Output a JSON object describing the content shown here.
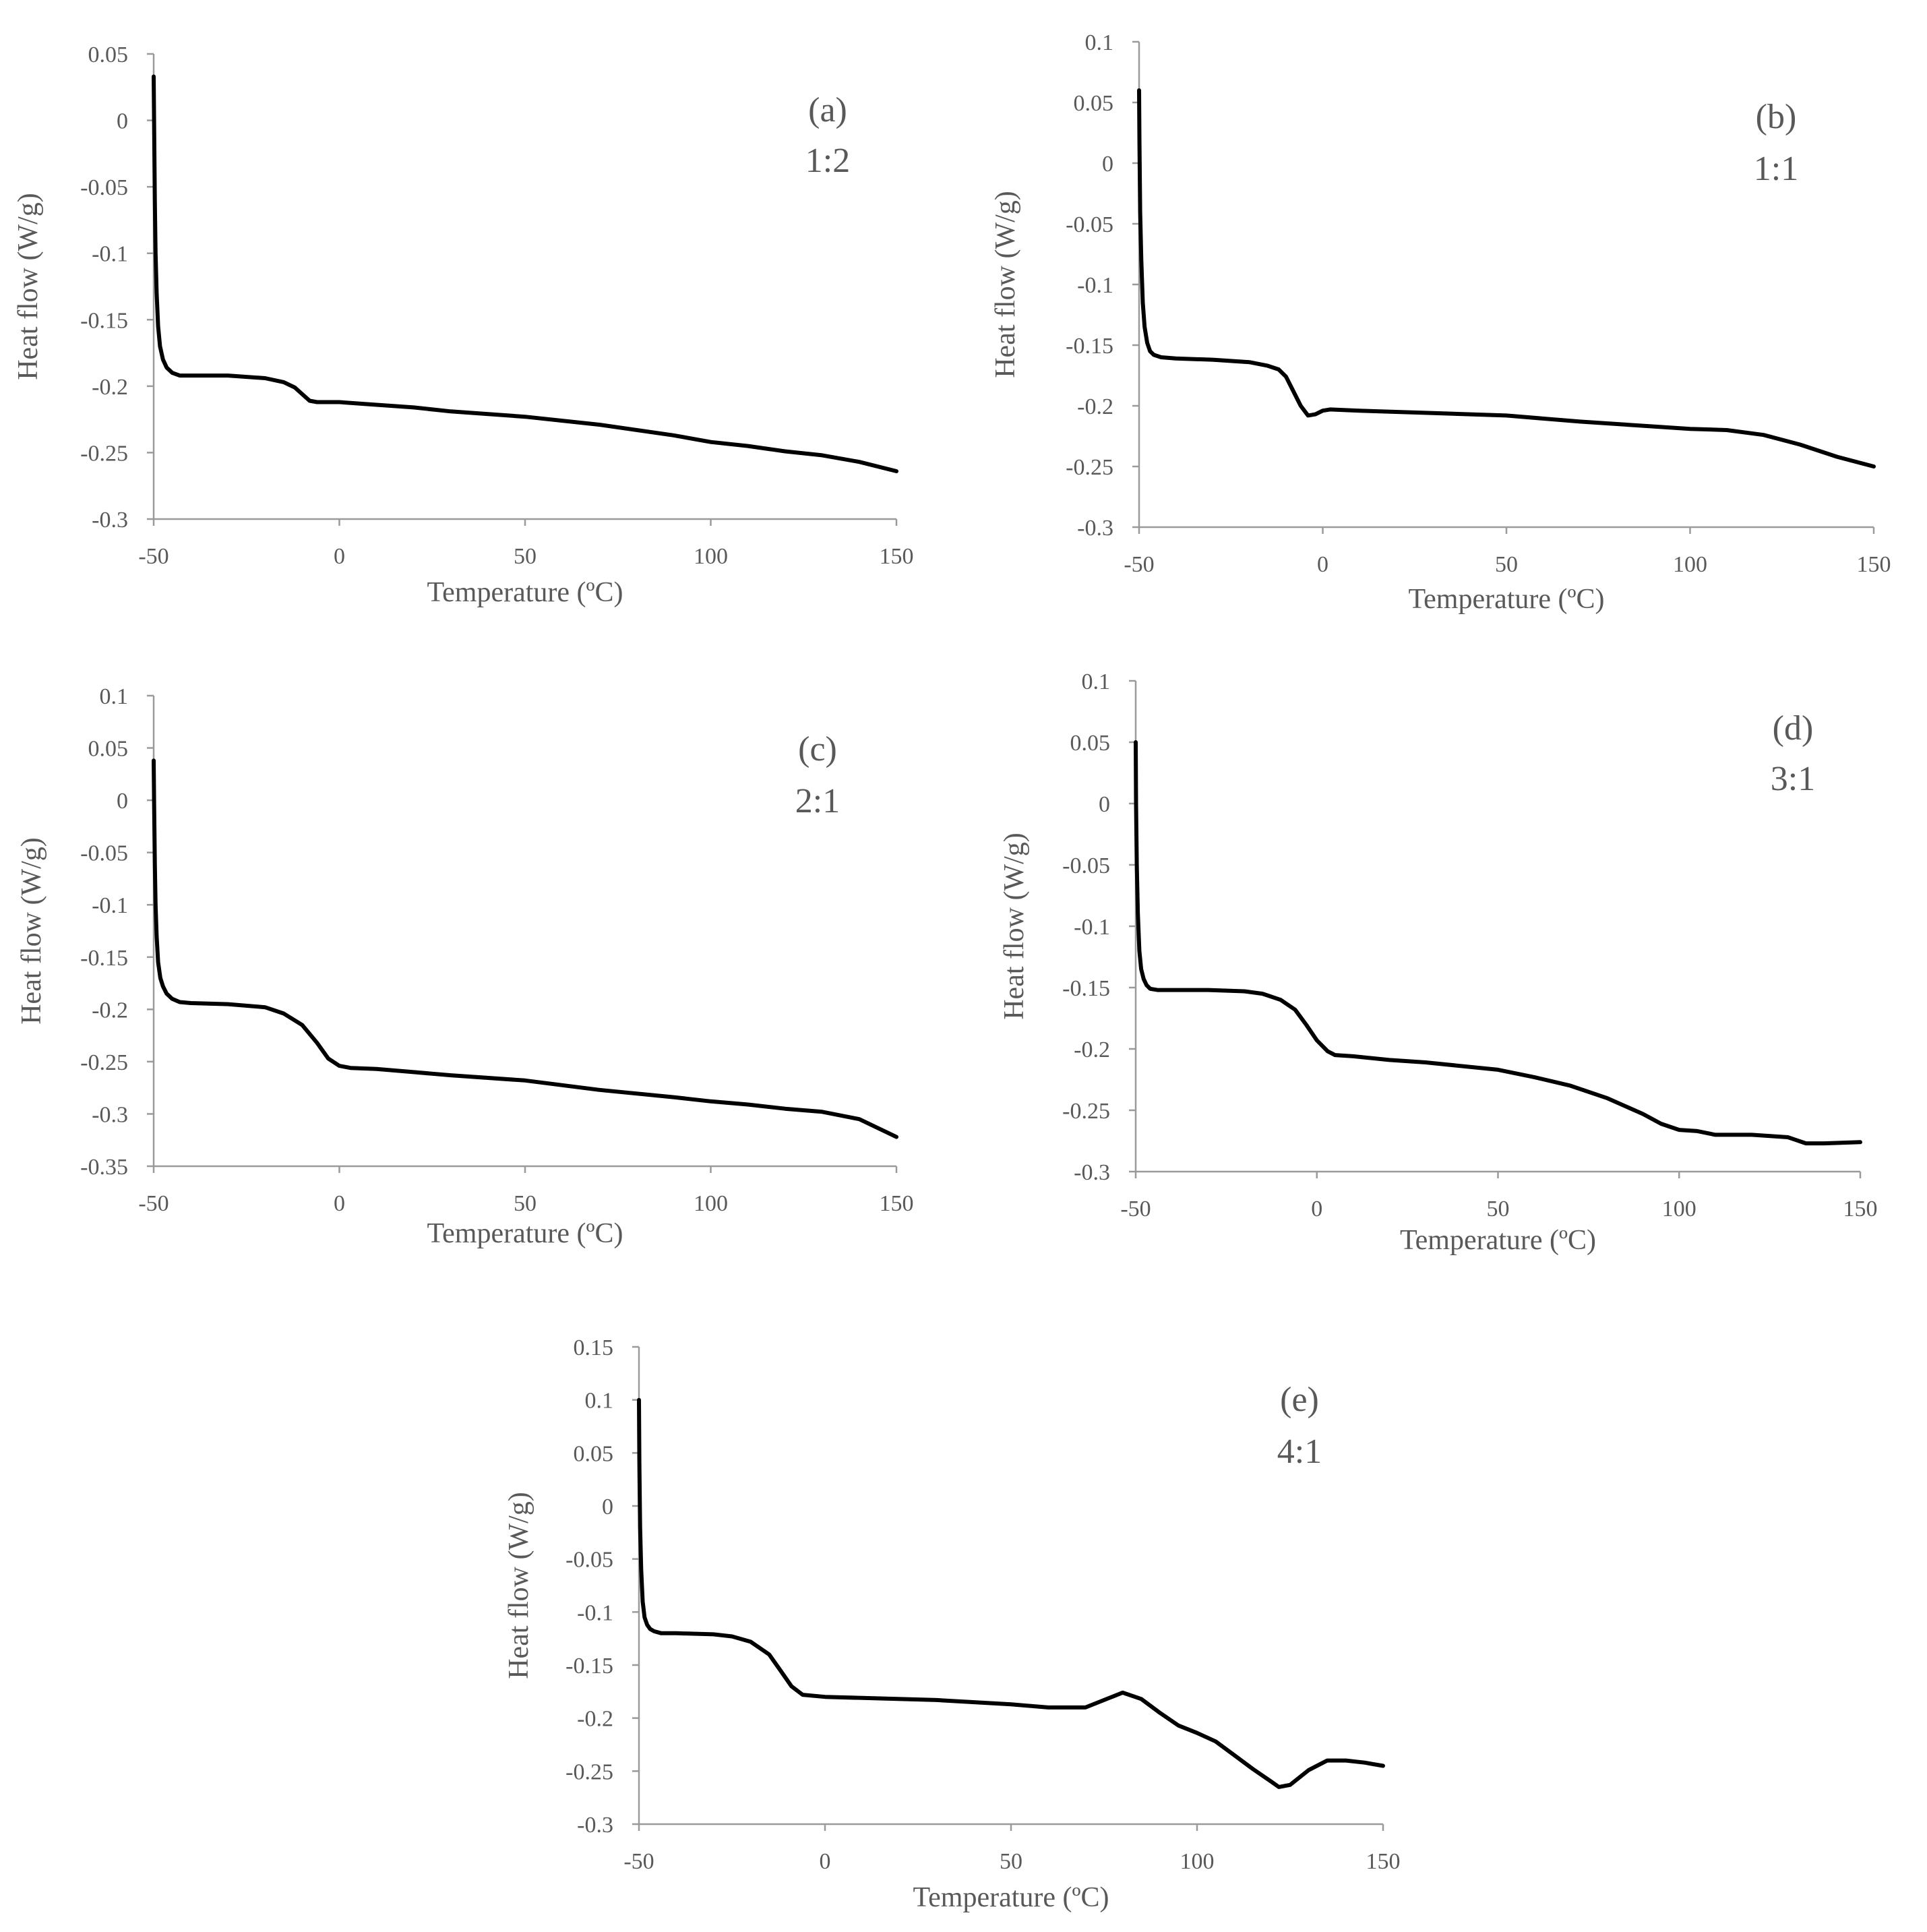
{
  "chart_data": [
    {
      "type": "line",
      "panel_label": "(a)",
      "ratio": "1:2",
      "xlabel": "Temperature (ºC)",
      "ylabel": "Heat flow (W/g)",
      "xlim": [
        -50,
        150
      ],
      "ylim": [
        -0.3,
        0.05
      ],
      "xticks": [
        -50,
        0,
        50,
        100,
        150
      ],
      "yticks": [
        0.05,
        0,
        -0.05,
        -0.1,
        -0.15,
        -0.2,
        -0.25,
        -0.3
      ],
      "xtick_labels": [
        "-50",
        "0",
        "50",
        "100",
        "150"
      ],
      "ytick_labels": [
        "0.05",
        "0",
        "-0.05",
        "-0.1",
        "-0.15",
        "-0.2",
        "-0.25",
        "-0.3"
      ],
      "series": [
        {
          "name": "1:2",
          "x": [
            -50,
            -49.9,
            -49.7,
            -49.5,
            -49.2,
            -48.8,
            -48.3,
            -47.5,
            -46.5,
            -45,
            -43,
            -40,
            -30,
            -20,
            -15,
            -12,
            -10,
            -8,
            -6,
            0,
            10,
            20,
            30,
            50,
            70,
            90,
            100,
            110,
            120,
            130,
            140,
            150
          ],
          "y": [
            0.033,
            0.0,
            -0.06,
            -0.1,
            -0.13,
            -0.155,
            -0.17,
            -0.18,
            -0.186,
            -0.19,
            -0.192,
            -0.192,
            -0.192,
            -0.194,
            -0.197,
            -0.201,
            -0.206,
            -0.211,
            -0.212,
            -0.212,
            -0.214,
            -0.216,
            -0.219,
            -0.223,
            -0.229,
            -0.237,
            -0.242,
            -0.245,
            -0.249,
            -0.252,
            -0.257,
            -0.264
          ]
        }
      ]
    },
    {
      "type": "line",
      "panel_label": "(b)",
      "ratio": "1:1",
      "xlabel": "Temperature (ºC)",
      "ylabel": "Heat flow (W/g)",
      "xlim": [
        -50,
        150
      ],
      "ylim": [
        -0.3,
        0.1
      ],
      "xticks": [
        -50,
        0,
        50,
        100,
        150
      ],
      "yticks": [
        0.1,
        0.05,
        0,
        -0.05,
        -0.1,
        -0.15,
        -0.2,
        -0.25,
        -0.3
      ],
      "xtick_labels": [
        "-50",
        "0",
        "50",
        "100",
        "150"
      ],
      "ytick_labels": [
        "0.1",
        "0.05",
        "0",
        "-0.05",
        "-0.1",
        "-0.15",
        "-0.2",
        "-0.25",
        "-0.3"
      ],
      "series": [
        {
          "name": "1:1",
          "x": [
            -50,
            -49.9,
            -49.7,
            -49.4,
            -49,
            -48.5,
            -47.8,
            -47,
            -46,
            -44,
            -40,
            -30,
            -20,
            -15,
            -12,
            -10,
            -8,
            -6,
            -4,
            -2,
            0,
            2,
            10,
            30,
            50,
            70,
            90,
            100,
            110,
            120,
            130,
            140,
            150
          ],
          "y": [
            0.06,
            0.02,
            -0.04,
            -0.08,
            -0.115,
            -0.135,
            -0.148,
            -0.155,
            -0.158,
            -0.16,
            -0.161,
            -0.162,
            -0.164,
            -0.167,
            -0.17,
            -0.176,
            -0.188,
            -0.2,
            -0.208,
            -0.207,
            -0.204,
            -0.203,
            -0.204,
            -0.206,
            -0.208,
            -0.213,
            -0.217,
            -0.219,
            -0.22,
            -0.224,
            -0.232,
            -0.242,
            -0.25
          ]
        }
      ]
    },
    {
      "type": "line",
      "panel_label": "(c)",
      "ratio": "2:1",
      "xlabel": "Temperature (ºC)",
      "ylabel": "Heat flow (W/g)",
      "xlim": [
        -50,
        150
      ],
      "ylim": [
        -0.35,
        0.1
      ],
      "xticks": [
        -50,
        0,
        50,
        100,
        150
      ],
      "yticks": [
        0.1,
        0.05,
        0,
        -0.05,
        -0.1,
        -0.15,
        -0.2,
        -0.25,
        -0.3,
        -0.35
      ],
      "xtick_labels": [
        "-50",
        "0",
        "50",
        "100",
        "150"
      ],
      "ytick_labels": [
        "0.1",
        "0.05",
        "0",
        "-0.05",
        "-0.1",
        "-0.15",
        "-0.2",
        "-0.25",
        "-0.3",
        "-0.35"
      ],
      "series": [
        {
          "name": "2:1",
          "x": [
            -50,
            -49.9,
            -49.7,
            -49.5,
            -49.2,
            -48.8,
            -48.2,
            -47.5,
            -46.5,
            -45,
            -43,
            -40,
            -30,
            -20,
            -15,
            -10,
            -6,
            -3,
            0,
            3,
            10,
            20,
            30,
            50,
            70,
            90,
            100,
            110,
            120,
            130,
            140,
            150
          ],
          "y": [
            0.038,
            0.0,
            -0.06,
            -0.1,
            -0.13,
            -0.155,
            -0.17,
            -0.178,
            -0.185,
            -0.19,
            -0.193,
            -0.194,
            -0.195,
            -0.198,
            -0.204,
            -0.215,
            -0.232,
            -0.247,
            -0.254,
            -0.256,
            -0.257,
            -0.26,
            -0.263,
            -0.268,
            -0.277,
            -0.284,
            -0.288,
            -0.291,
            -0.295,
            -0.298,
            -0.305,
            -0.322
          ]
        }
      ]
    },
    {
      "type": "line",
      "panel_label": "(d)",
      "ratio": "3:1",
      "xlabel": "Temperature (ºC)",
      "ylabel": "Heat flow (W/g)",
      "xlim": [
        -50,
        150
      ],
      "ylim": [
        -0.3,
        0.1
      ],
      "xticks": [
        -50,
        0,
        50,
        100,
        150
      ],
      "yticks": [
        0.1,
        0.05,
        0,
        -0.05,
        -0.1,
        -0.15,
        -0.2,
        -0.25,
        -0.3
      ],
      "xtick_labels": [
        "-50",
        "0",
        "50",
        "100",
        "150"
      ],
      "ytick_labels": [
        "0.1",
        "0.05",
        "0",
        "-0.05",
        "-0.1",
        "-0.15",
        "-0.2",
        "-0.25",
        "-0.3"
      ],
      "series": [
        {
          "name": "3:1",
          "x": [
            -50,
            -49.9,
            -49.7,
            -49.4,
            -49,
            -48.5,
            -47.8,
            -47,
            -46,
            -44,
            -40,
            -30,
            -20,
            -15,
            -10,
            -6,
            -3,
            0,
            3,
            5,
            10,
            20,
            30,
            50,
            60,
            70,
            80,
            90,
            95,
            100,
            105,
            110,
            120,
            130,
            135,
            140,
            150
          ],
          "y": [
            0.05,
            0.0,
            -0.05,
            -0.09,
            -0.12,
            -0.135,
            -0.143,
            -0.148,
            -0.151,
            -0.152,
            -0.152,
            -0.152,
            -0.153,
            -0.155,
            -0.16,
            -0.168,
            -0.18,
            -0.193,
            -0.202,
            -0.205,
            -0.206,
            -0.209,
            -0.211,
            -0.217,
            -0.223,
            -0.23,
            -0.24,
            -0.253,
            -0.261,
            -0.266,
            -0.267,
            -0.27,
            -0.27,
            -0.272,
            -0.277,
            -0.277,
            -0.276
          ]
        }
      ]
    },
    {
      "type": "line",
      "panel_label": "(e)",
      "ratio": "4:1",
      "xlabel": "Temperature (ºC)",
      "ylabel": "Heat flow (W/g)",
      "xlim": [
        -50,
        150
      ],
      "ylim": [
        -0.3,
        0.15
      ],
      "xticks": [
        -50,
        0,
        50,
        100,
        150
      ],
      "yticks": [
        0.15,
        0.1,
        0.05,
        0,
        -0.05,
        -0.1,
        -0.15,
        -0.2,
        -0.25,
        -0.3
      ],
      "xtick_labels": [
        "-50",
        "0",
        "50",
        "100",
        "150"
      ],
      "ytick_labels": [
        "0.15",
        "0.1",
        "0.05",
        "0",
        "-0.05",
        "-0.1",
        "-0.15",
        "-0.2",
        "-0.25",
        "-0.3"
      ],
      "series": [
        {
          "name": "4:1",
          "x": [
            -50,
            -49.9,
            -49.7,
            -49.4,
            -49,
            -48.5,
            -47.8,
            -47,
            -46,
            -44,
            -40,
            -30,
            -25,
            -20,
            -15,
            -12,
            -9,
            -6,
            0,
            10,
            30,
            50,
            60,
            70,
            75,
            80,
            85,
            90,
            95,
            100,
            105,
            110,
            115,
            120,
            122,
            125,
            130,
            135,
            140,
            145,
            150
          ],
          "y": [
            0.1,
            0.04,
            -0.02,
            -0.06,
            -0.09,
            -0.105,
            -0.112,
            -0.116,
            -0.118,
            -0.12,
            -0.12,
            -0.121,
            -0.123,
            -0.128,
            -0.14,
            -0.155,
            -0.17,
            -0.178,
            -0.18,
            -0.181,
            -0.183,
            -0.187,
            -0.19,
            -0.19,
            -0.183,
            -0.176,
            -0.182,
            -0.195,
            -0.207,
            -0.214,
            -0.222,
            -0.235,
            -0.248,
            -0.26,
            -0.265,
            -0.263,
            -0.249,
            -0.24,
            -0.24,
            -0.242,
            -0.245
          ]
        }
      ]
    }
  ]
}
